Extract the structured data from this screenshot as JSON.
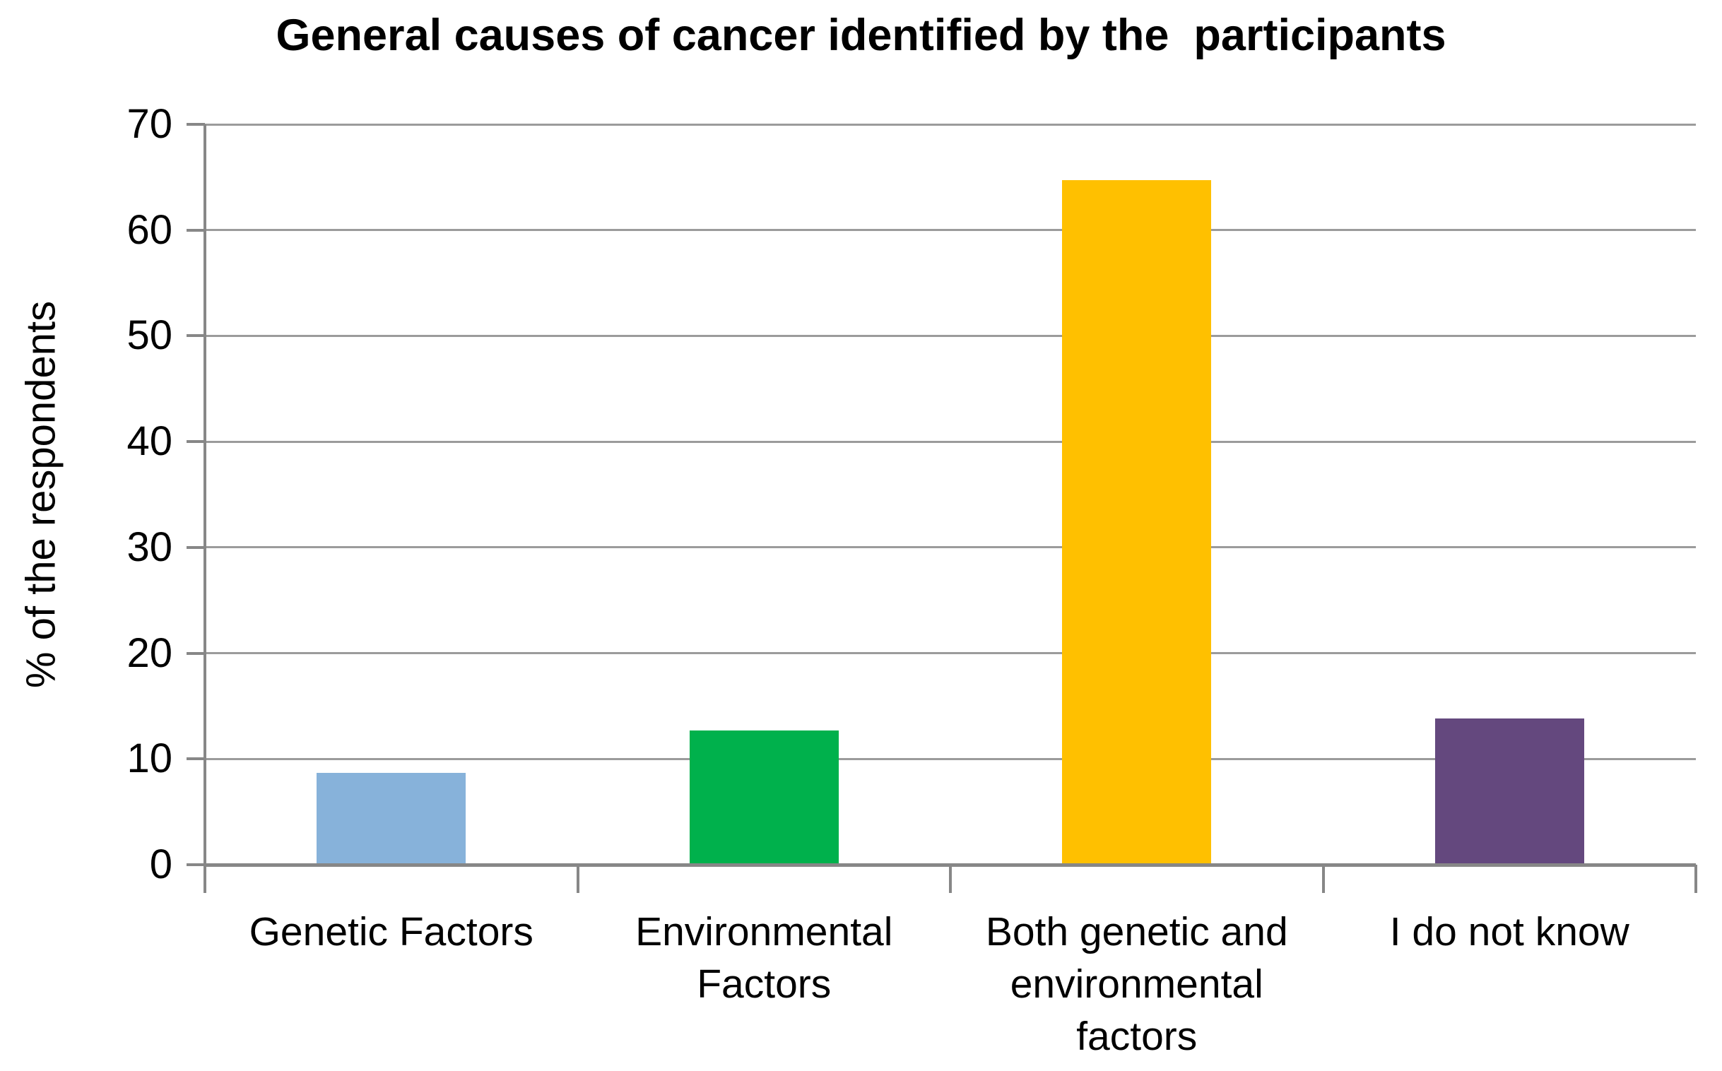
{
  "chart_data": {
    "type": "bar",
    "title": "General causes of cancer identified by the  participants",
    "xlabel": "",
    "ylabel": "% of the respondents",
    "categories": [
      "Genetic Factors",
      "Environmental Factors",
      "Both genetic and environmental factors",
      "I do not know"
    ],
    "values": [
      8.7,
      12.7,
      64.7,
      13.8
    ],
    "bar_colors": [
      "#87B2DA",
      "#00B14C",
      "#FFC000",
      "#64487E"
    ],
    "ylim": [
      0,
      70
    ],
    "yticks": [
      0,
      10,
      20,
      30,
      40,
      50,
      60,
      70
    ],
    "grid": true,
    "legend": "none",
    "gridline_color": "#9B9B9B",
    "axis_color": "#878787",
    "background_color": "#FFFFFF",
    "text_color": "#000000"
  }
}
